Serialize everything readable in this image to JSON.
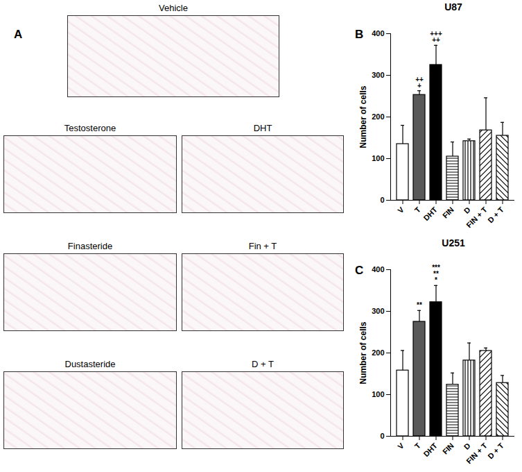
{
  "figure": {
    "panel_labels": [
      "A",
      "B",
      "C"
    ],
    "image_titles": [
      "Vehicle",
      "Testosterone",
      "DHT",
      "Finasteride",
      "Fin + T",
      "Dustasteride",
      "D + T"
    ]
  },
  "chart_data": [
    {
      "type": "bar",
      "title": "U87",
      "y_label": "Number of cells",
      "categories": [
        "V",
        "T",
        "DHT",
        "FIN",
        "D",
        "FIN + T",
        "D + T"
      ],
      "values": [
        135,
        253,
        325,
        105,
        142,
        168,
        155
      ],
      "errors": [
        45,
        10,
        47,
        35,
        5,
        78,
        32
      ],
      "colors": [
        "#ffffff",
        "#595959",
        "#000000",
        "#ffffff",
        "#ffffff",
        "#ffffff",
        "#ffffff"
      ],
      "annotations": [
        null,
        [
          "++",
          "+"
        ],
        [
          "+++",
          "++"
        ],
        null,
        null,
        null,
        null
      ],
      "ylim": [
        0,
        400
      ],
      "yticks": [
        0,
        100,
        200,
        300,
        400
      ],
      "grid": false
    },
    {
      "type": "bar",
      "title": "U251",
      "y_label": "Number of cells",
      "categories": [
        "V",
        "T",
        "DHT",
        "FIN",
        "D",
        "FIN + T",
        "D + T"
      ],
      "values": [
        158,
        275,
        322,
        124,
        182,
        205,
        128
      ],
      "errors": [
        48,
        27,
        40,
        28,
        42,
        7,
        18
      ],
      "colors": [
        "#ffffff",
        "#595959",
        "#000000",
        "#ffffff",
        "#ffffff",
        "#ffffff",
        "#ffffff"
      ],
      "annotations": [
        null,
        [
          "**"
        ],
        [
          "***",
          "**",
          "*"
        ],
        null,
        null,
        null,
        null
      ],
      "ylim": [
        0,
        400
      ],
      "yticks": [
        0,
        100,
        200,
        300,
        400
      ],
      "grid": false
    }
  ]
}
